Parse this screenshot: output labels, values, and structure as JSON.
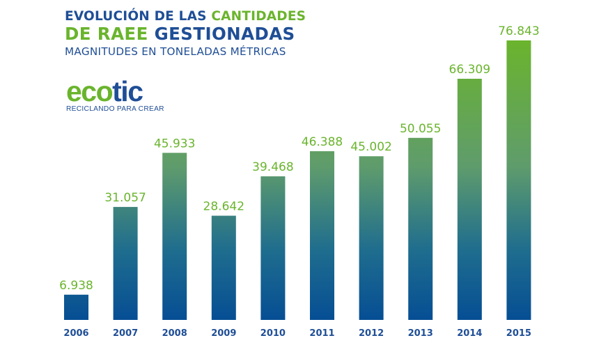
{
  "header": {
    "line1_part1": "EVOLUCIÓN DE LAS ",
    "line1_part2": "CANTIDADES",
    "line2_part1": "DE RAEE ",
    "line2_part2": "GESTIONADAS",
    "line3": "MAGNITUDES EN TONELADAS MÉTRICAS"
  },
  "logo": {
    "word_part1": "eco",
    "word_part2": "tic",
    "tagline": "RECICLANDO PARA CREAR"
  },
  "colors": {
    "brand_blue": "#1f4e96",
    "brand_green": "#6ab42d",
    "bar_top": "#6ab42d",
    "bar_bottom": "#064e94"
  },
  "chart_data": {
    "type": "bar",
    "title": "EVOLUCIÓN DE LAS CANTIDADES DE RAEE GESTIONADAS",
    "subtitle": "MAGNITUDES EN TONELADAS MÉTRICAS",
    "xlabel": "",
    "ylabel": "Toneladas métricas",
    "categories": [
      "2006",
      "2007",
      "2008",
      "2009",
      "2010",
      "2011",
      "2012",
      "2013",
      "2014",
      "2015"
    ],
    "values": [
      6938,
      31057,
      45933,
      28642,
      39468,
      46388,
      45002,
      50055,
      66309,
      76843
    ],
    "value_labels": [
      "6.938",
      "31.057",
      "45.933",
      "28.642",
      "39.468",
      "46.388",
      "45.002",
      "50.055",
      "66.309",
      "76.843"
    ],
    "ylim": [
      0,
      76843
    ],
    "grid": false,
    "legend": "none"
  }
}
